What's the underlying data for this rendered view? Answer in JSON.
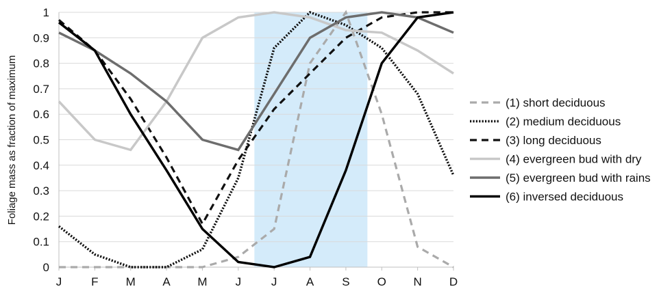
{
  "chart_data": {
    "type": "line",
    "title": "",
    "xlabel": "",
    "ylabel": "Foliage mass as fraction of maximum",
    "categories": [
      "J",
      "F",
      "M",
      "A",
      "M",
      "J",
      "J",
      "A",
      "S",
      "O",
      "N",
      "D"
    ],
    "ylim": [
      0,
      1
    ],
    "yticks": [
      "0",
      "0.1",
      "0.2",
      "0.3",
      "0.4",
      "0.5",
      "0.6",
      "0.7",
      "0.8",
      "0.9",
      "1"
    ],
    "grid": "horizontal",
    "legend_position": "right",
    "highlight_band": {
      "x_start": 5.45,
      "x_end": 8.6,
      "color": "#d4ebfa"
    },
    "series": [
      {
        "name": "(1) short deciduous",
        "color": "#aaaaaa",
        "style": "dashed",
        "values": [
          0,
          0,
          0,
          0,
          0,
          0.04,
          0.15,
          0.8,
          1.0,
          0.6,
          0.08,
          0
        ]
      },
      {
        "name": "(2) medium deciduous",
        "color": "#111111",
        "style": "dotted",
        "values": [
          0.16,
          0.05,
          0,
          0,
          0.07,
          0.35,
          0.86,
          1.0,
          0.95,
          0.86,
          0.68,
          0.36
        ]
      },
      {
        "name": "(3) long deciduous",
        "color": "#111111",
        "style": "dashed",
        "values": [
          0.97,
          0.85,
          0.66,
          0.43,
          0.17,
          0.42,
          0.62,
          0.76,
          0.9,
          0.98,
          1.0,
          1.0
        ]
      },
      {
        "name": "(4) evergreen bud with dry",
        "color": "#c8c8c8",
        "style": "solid",
        "values": [
          0.65,
          0.5,
          0.46,
          0.65,
          0.9,
          0.98,
          1.0,
          0.98,
          0.93,
          0.92,
          0.85,
          0.76
        ]
      },
      {
        "name": "(5) evergreen bud with rains",
        "color": "#6d6d6d",
        "style": "solid",
        "values": [
          0.92,
          0.85,
          0.76,
          0.65,
          0.5,
          0.46,
          0.68,
          0.9,
          0.98,
          1.0,
          0.98,
          0.92
        ]
      },
      {
        "name": "(6) inversed deciduous",
        "color": "#000000",
        "style": "solid",
        "values": [
          0.96,
          0.85,
          0.6,
          0.38,
          0.15,
          0.02,
          0,
          0.04,
          0.38,
          0.8,
          0.98,
          1.0
        ]
      }
    ]
  }
}
